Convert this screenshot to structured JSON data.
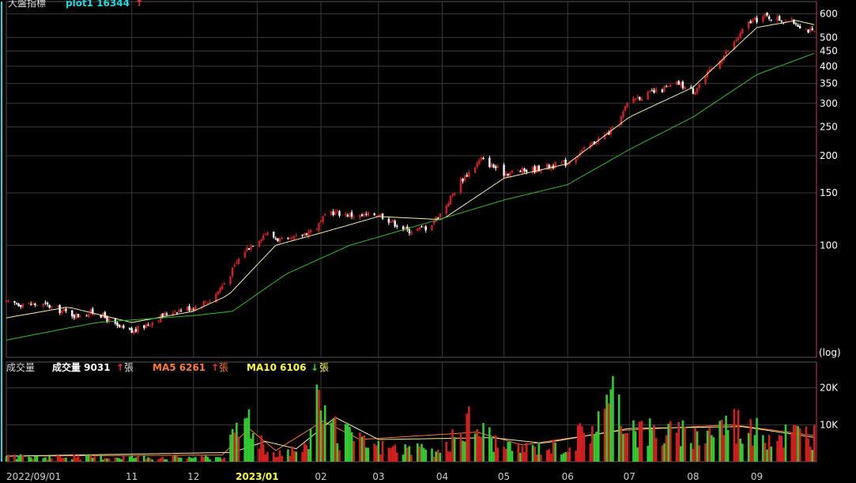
{
  "header": {
    "main_label": "大盤指標",
    "plot_label": "plot1 16344",
    "plot_arrow": "↑",
    "vol_label": "成交量",
    "vol_value_label": "成交量 9031",
    "vol_arrow": "↑",
    "unit": "張",
    "ma5_label": "MA5 6261",
    "ma5_arrow": "↑",
    "ma10_label": "MA10 6106",
    "ma10_arrow": "↓"
  },
  "colors": {
    "background": "#000000",
    "grid": "#3a3a3a",
    "up": "#d42020",
    "down": "#ffffff",
    "vol_up": "#d42020",
    "vol_down": "#33cc33",
    "ma_short": "#f5f0a0",
    "ma_long": "#33bb33",
    "cyan": "#20d8e0",
    "orange": "#ff7a30",
    "yellow": "#ffff30",
    "axis_border": "#c04040"
  },
  "chart_data": [
    {
      "type": "candlestick",
      "scale": "log",
      "ylim": [
        42,
        660
      ],
      "yticks": [
        100,
        150,
        200,
        250,
        300,
        350,
        400,
        450,
        500,
        600
      ],
      "scale_label": "(log)",
      "x_range": [
        "2022/09/01",
        "2023/09/30"
      ],
      "month_ticks": [
        {
          "date": "2022/09/01",
          "label": "2022/09/01"
        },
        {
          "date": "2022/11/01",
          "label": "11"
        },
        {
          "date": "2022/12/01",
          "label": "12"
        },
        {
          "date": "2023/01/01",
          "label": "2023/01"
        },
        {
          "date": "2023/02/01",
          "label": "02"
        },
        {
          "date": "2023/03/01",
          "label": "03"
        },
        {
          "date": "2023/04/01",
          "label": "04"
        },
        {
          "date": "2023/05/01",
          "label": "05"
        },
        {
          "date": "2023/06/01",
          "label": "06"
        },
        {
          "date": "2023/07/01",
          "label": "07"
        },
        {
          "date": "2023/08/01",
          "label": "08"
        },
        {
          "date": "2023/09/01",
          "label": "09"
        }
      ],
      "close_path": [
        [
          "2022/09/01",
          64
        ],
        [
          "2022/09/20",
          63
        ],
        [
          "2022/10/05",
          58
        ],
        [
          "2022/10/15",
          60
        ],
        [
          "2022/10/25",
          53
        ],
        [
          "2022/11/01",
          51
        ],
        [
          "2022/11/10",
          55
        ],
        [
          "2022/11/20",
          60
        ],
        [
          "2022/12/01",
          62
        ],
        [
          "2022/12/10",
          66
        ],
        [
          "2022/12/18",
          78
        ],
        [
          "2022/12/25",
          95
        ],
        [
          "2023/01/05",
          110
        ],
        [
          "2023/01/15",
          102
        ],
        [
          "2023/01/30",
          115
        ],
        [
          "2023/02/05",
          130
        ],
        [
          "2023/02/20",
          125
        ],
        [
          "2023/03/01",
          128
        ],
        [
          "2023/03/15",
          112
        ],
        [
          "2023/03/25",
          115
        ],
        [
          "2023/04/01",
          130
        ],
        [
          "2023/04/10",
          165
        ],
        [
          "2023/04/20",
          195
        ],
        [
          "2023/05/01",
          175
        ],
        [
          "2023/05/15",
          180
        ],
        [
          "2023/06/01",
          190
        ],
        [
          "2023/06/15",
          225
        ],
        [
          "2023/06/25",
          250
        ],
        [
          "2023/07/01",
          310
        ],
        [
          "2023/07/15",
          330
        ],
        [
          "2023/07/25",
          350
        ],
        [
          "2023/08/01",
          330
        ],
        [
          "2023/08/10",
          390
        ],
        [
          "2023/08/20",
          470
        ],
        [
          "2023/08/28",
          560
        ],
        [
          "2023/09/05",
          590
        ],
        [
          "2023/09/15",
          570
        ],
        [
          "2023/09/20",
          560
        ],
        [
          "2023/09/28",
          520
        ]
      ],
      "ma_short": [
        [
          "2022/09/01",
          57
        ],
        [
          "2022/10/01",
          62
        ],
        [
          "2022/11/01",
          55
        ],
        [
          "2022/12/01",
          60
        ],
        [
          "2022/12/18",
          68
        ],
        [
          "2023/01/10",
          100
        ],
        [
          "2023/02/01",
          110
        ],
        [
          "2023/03/01",
          125
        ],
        [
          "2023/04/01",
          122
        ],
        [
          "2023/05/01",
          168
        ],
        [
          "2023/06/01",
          188
        ],
        [
          "2023/07/01",
          270
        ],
        [
          "2023/08/01",
          340
        ],
        [
          "2023/09/01",
          540
        ],
        [
          "2023/09/20",
          570
        ],
        [
          "2023/09/30",
          550
        ]
      ],
      "ma_long": [
        [
          "2022/09/01",
          48
        ],
        [
          "2022/10/15",
          55
        ],
        [
          "2022/12/01",
          58
        ],
        [
          "2022/12/20",
          60
        ],
        [
          "2023/01/15",
          80
        ],
        [
          "2023/02/15",
          100
        ],
        [
          "2023/04/01",
          123
        ],
        [
          "2023/05/01",
          142
        ],
        [
          "2023/06/01",
          160
        ],
        [
          "2023/07/01",
          210
        ],
        [
          "2023/08/01",
          270
        ],
        [
          "2023/09/01",
          375
        ],
        [
          "2023/09/30",
          445
        ]
      ]
    },
    {
      "type": "bar",
      "title": "成交量",
      "ylim": [
        0,
        27000
      ],
      "yticks": [
        {
          "value": 10000,
          "label": "10K"
        },
        {
          "value": 20000,
          "label": "20K"
        }
      ],
      "vol_path": [
        [
          "2022/09/01",
          1500
        ],
        [
          "2022/12/15",
          1500
        ],
        [
          "2022/12/22",
          9000
        ],
        [
          "2022/12/28",
          15000
        ],
        [
          "2023/01/06",
          3000
        ],
        [
          "2023/01/25",
          4000
        ],
        [
          "2023/01/31",
          26000
        ],
        [
          "2023/02/05",
          10000
        ],
        [
          "2023/02/25",
          5000
        ],
        [
          "2023/04/01",
          3000
        ],
        [
          "2023/04/15",
          13000
        ],
        [
          "2023/05/01",
          4000
        ],
        [
          "2023/06/01",
          5000
        ],
        [
          "2023/06/25",
          19000
        ],
        [
          "2023/07/05",
          10000
        ],
        [
          "2023/08/01",
          8000
        ],
        [
          "2023/08/20",
          13000
        ],
        [
          "2023/09/01",
          9000
        ],
        [
          "2023/09/30",
          9000
        ]
      ],
      "ma5_path": [
        [
          "2022/09/01",
          1500
        ],
        [
          "2022/12/15",
          1800
        ],
        [
          "2022/12/28",
          9000
        ],
        [
          "2023/01/10",
          3000
        ],
        [
          "2023/02/02",
          11000
        ],
        [
          "2023/02/20",
          6000
        ],
        [
          "2023/04/18",
          8000
        ],
        [
          "2023/05/10",
          4500
        ],
        [
          "2023/06/28",
          8500
        ],
        [
          "2023/08/20",
          10000
        ],
        [
          "2023/09/30",
          7000
        ]
      ],
      "ma10_path": [
        [
          "2022/09/01",
          1500
        ],
        [
          "2022/12/20",
          2500
        ],
        [
          "2023/01/05",
          5500
        ],
        [
          "2023/01/20",
          3500
        ],
        [
          "2023/02/08",
          12000
        ],
        [
          "2023/03/01",
          6000
        ],
        [
          "2023/04/25",
          6500
        ],
        [
          "2023/05/20",
          5000
        ],
        [
          "2023/07/01",
          9000
        ],
        [
          "2023/08/25",
          9500
        ],
        [
          "2023/09/30",
          6500
        ]
      ]
    }
  ]
}
